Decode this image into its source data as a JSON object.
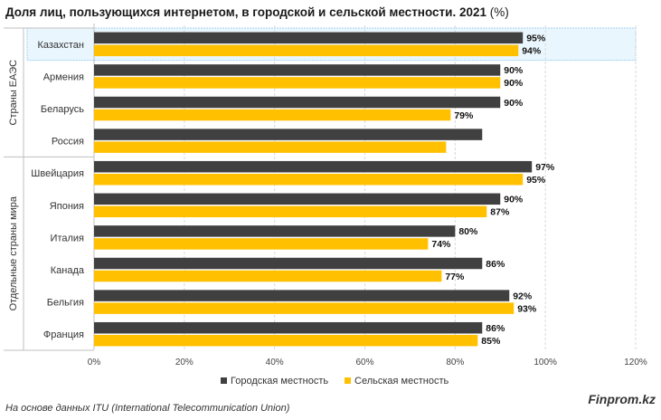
{
  "title": {
    "text": "Доля лиц, пользующихся интернетом, в городской и сельской местности. 2021",
    "unit": "(%)"
  },
  "footer": {
    "source": "На основе данных ITU (International Telecommunication Union)",
    "brand": "Finprom.kz"
  },
  "colors": {
    "urban": "#404040",
    "rural": "#FFC000",
    "highlight_fill": "#EAF6FD",
    "highlight_border": "#9DD3F2",
    "grid": "#D9D9D9"
  },
  "chart_data": {
    "type": "bar",
    "orientation": "horizontal",
    "title": "Доля лиц, пользующихся интернетом, в городской и сельской местности. 2021 (%)",
    "xlim": [
      0,
      120
    ],
    "x_ticks": [
      "0%",
      "20%",
      "40%",
      "60%",
      "80%",
      "100%",
      "120%"
    ],
    "grid": true,
    "legend_position": "bottom",
    "highlighted_category": "Казахстан",
    "groups": [
      {
        "label": "Страны ЕАЭС",
        "categories": [
          "Казахстан",
          "Армения",
          "Беларусь",
          "Россия"
        ]
      },
      {
        "label": "Отдельные страны мира",
        "categories": [
          "Швейцария",
          "Япония",
          "Италия",
          "Канада",
          "Бельгия",
          "Франция"
        ]
      }
    ],
    "categories": [
      "Казахстан",
      "Армения",
      "Беларусь",
      "Россия",
      "Швейцария",
      "Япония",
      "Италия",
      "Канада",
      "Бельгия",
      "Франция"
    ],
    "series": [
      {
        "name": "Городская местность",
        "values": [
          95,
          90,
          90,
          86,
          97,
          90,
          80,
          86,
          92,
          86
        ],
        "labels": [
          "95%",
          "90%",
          "90%",
          "",
          "97%",
          "90%",
          "80%",
          "86%",
          "92%",
          "86%"
        ]
      },
      {
        "name": "Сельская местность",
        "values": [
          94,
          90,
          79,
          78,
          95,
          87,
          74,
          77,
          93,
          85
        ],
        "labels": [
          "94%",
          "90%",
          "79%",
          "",
          "95%",
          "87%",
          "74%",
          "77%",
          "93%",
          "85%"
        ]
      }
    ]
  }
}
